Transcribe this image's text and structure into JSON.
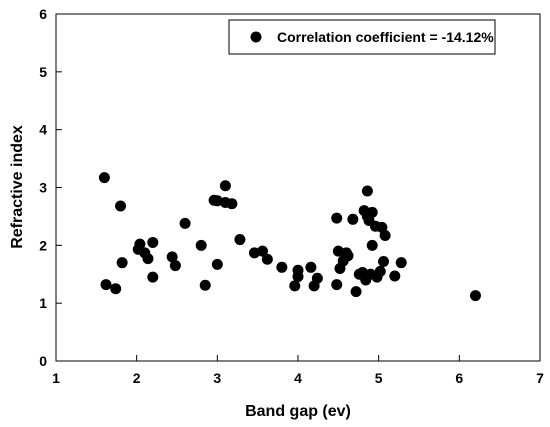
{
  "chart_data": {
    "type": "scatter",
    "title": "",
    "xlabel": "Band gap (ev)",
    "ylabel": "Refractive index",
    "xlim": [
      1,
      7
    ],
    "ylim": [
      0,
      6
    ],
    "xticks": [
      "1",
      "2",
      "3",
      "4",
      "5",
      "6",
      "7"
    ],
    "yticks": [
      "0",
      "1",
      "2",
      "3",
      "4",
      "5",
      "6"
    ],
    "grid": false,
    "legend_position": "top-right",
    "legend_label": "Correlation coefficient = -14.12%",
    "marker_color": "#000000",
    "series": [
      {
        "name": "Correlation coefficient = -14.12%",
        "points": [
          [
            1.6,
            3.17
          ],
          [
            1.62,
            1.32
          ],
          [
            1.74,
            1.25
          ],
          [
            1.8,
            2.68
          ],
          [
            1.82,
            1.7
          ],
          [
            2.02,
            1.93
          ],
          [
            2.04,
            2.02
          ],
          [
            2.1,
            1.87
          ],
          [
            2.14,
            1.77
          ],
          [
            2.2,
            2.05
          ],
          [
            2.2,
            1.45
          ],
          [
            2.44,
            1.8
          ],
          [
            2.48,
            1.65
          ],
          [
            2.6,
            2.38
          ],
          [
            2.8,
            2.0
          ],
          [
            2.85,
            1.31
          ],
          [
            2.96,
            2.78
          ],
          [
            3.0,
            2.77
          ],
          [
            3.0,
            1.67
          ],
          [
            3.1,
            3.03
          ],
          [
            3.1,
            2.74
          ],
          [
            3.18,
            2.72
          ],
          [
            3.28,
            2.1
          ],
          [
            3.46,
            1.87
          ],
          [
            3.56,
            1.9
          ],
          [
            3.62,
            1.76
          ],
          [
            3.8,
            1.62
          ],
          [
            3.96,
            1.3
          ],
          [
            4.0,
            1.57
          ],
          [
            4.0,
            1.46
          ],
          [
            4.16,
            1.62
          ],
          [
            4.2,
            1.3
          ],
          [
            4.24,
            1.43
          ],
          [
            4.48,
            2.47
          ],
          [
            4.48,
            1.32
          ],
          [
            4.5,
            1.9
          ],
          [
            4.52,
            1.6
          ],
          [
            4.56,
            1.73
          ],
          [
            4.6,
            1.87
          ],
          [
            4.62,
            1.82
          ],
          [
            4.68,
            2.45
          ],
          [
            4.72,
            1.2
          ],
          [
            4.76,
            1.5
          ],
          [
            4.8,
            1.53
          ],
          [
            4.82,
            2.6
          ],
          [
            4.84,
            1.4
          ],
          [
            4.86,
            2.94
          ],
          [
            4.86,
            2.5
          ],
          [
            4.88,
            2.43
          ],
          [
            4.9,
            1.5
          ],
          [
            4.92,
            2.57
          ],
          [
            4.92,
            2.0
          ],
          [
            4.96,
            2.33
          ],
          [
            4.98,
            1.45
          ],
          [
            5.02,
            1.55
          ],
          [
            5.04,
            2.31
          ],
          [
            5.06,
            1.72
          ],
          [
            5.08,
            2.17
          ],
          [
            5.2,
            1.47
          ],
          [
            5.28,
            1.7
          ],
          [
            6.2,
            1.13
          ]
        ]
      }
    ]
  }
}
